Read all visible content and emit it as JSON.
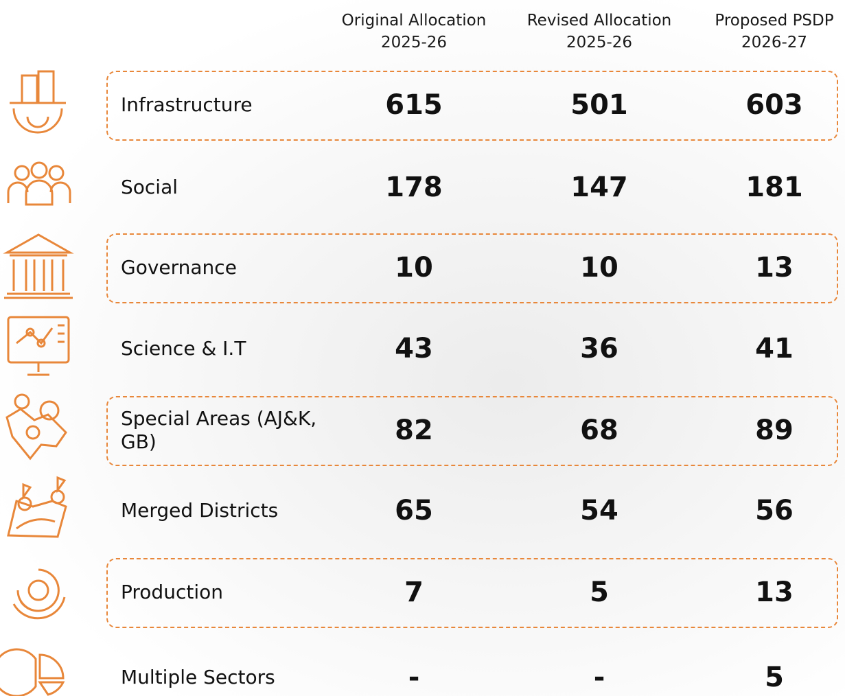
{
  "table": {
    "columns": [
      {
        "title": "Original Allocation",
        "year": "2025-26"
      },
      {
        "title": "Revised Allocation",
        "year": "2025-26"
      },
      {
        "title": "Proposed PSDP",
        "year": "2026-27"
      }
    ],
    "rows": [
      [
        "Infrastructure",
        615,
        501,
        603
      ],
      [
        "Social",
        178,
        147,
        181
      ],
      [
        "Governance",
        10,
        10,
        13
      ],
      [
        "Science & I.T",
        43,
        36,
        41
      ],
      [
        "Special Areas (AJ&K, GB)",
        82,
        68,
        89
      ],
      [
        "Merged Districts",
        65,
        54,
        56
      ],
      [
        "Production",
        7,
        5,
        13
      ],
      [
        "Multiple Sectors",
        "-",
        "-",
        5
      ]
    ]
  }
}
